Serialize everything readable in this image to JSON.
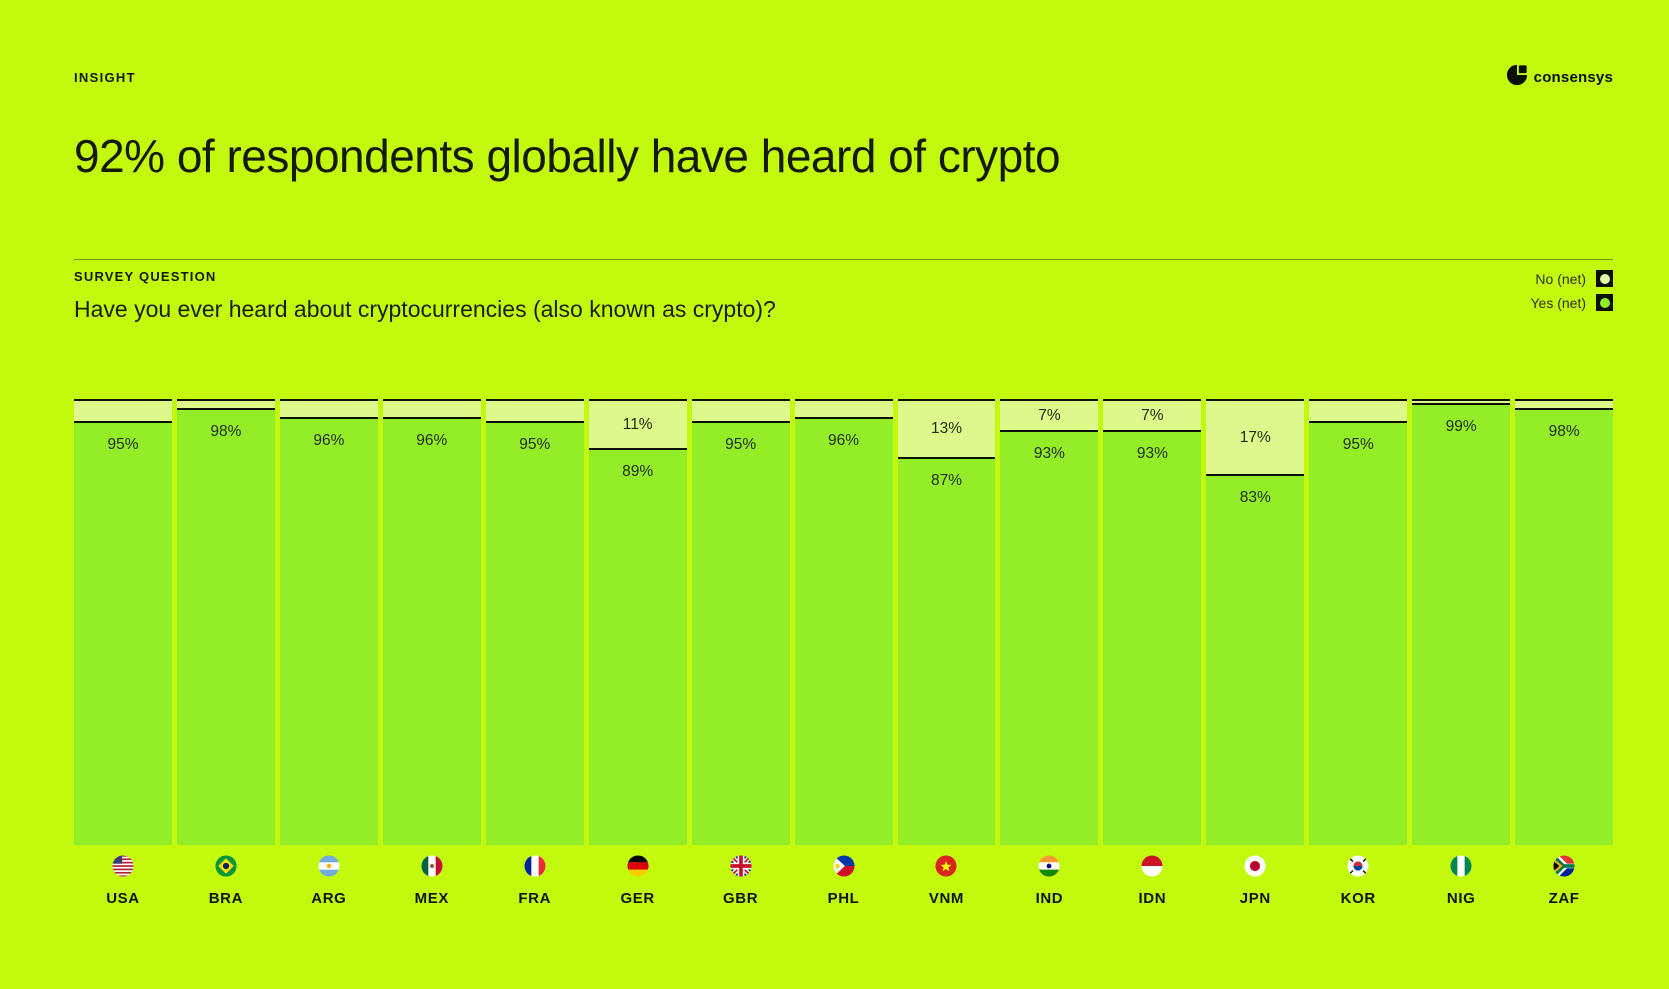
{
  "page": {
    "eyebrow": "INSIGHT",
    "title": "92% of respondents globally have heard of crypto",
    "brand": "consensys"
  },
  "survey": {
    "label": "SURVEY QUESTION",
    "question": "Have you ever heard about cryptocurrencies (also known as crypto)?"
  },
  "legend": {
    "no_label": "No (net)",
    "yes_label": "Yes (net)"
  },
  "colors": {
    "background": "#C2F90D",
    "yes": "#93EE28",
    "no": "#DDF98B",
    "line": "#0B1002"
  },
  "chart_data": {
    "type": "bar",
    "stacked": true,
    "orientation": "vertical",
    "unit": "%",
    "ylim": [
      0,
      100
    ],
    "grid": false,
    "legend_position": "top-right",
    "categories": [
      "USA",
      "BRA",
      "ARG",
      "MEX",
      "FRA",
      "GER",
      "GBR",
      "PHL",
      "VNM",
      "IND",
      "IDN",
      "JPN",
      "KOR",
      "NIG",
      "ZAF"
    ],
    "series": [
      {
        "name": "No (net)",
        "values": [
          5,
          2,
          4,
          4,
          5,
          11,
          5,
          4,
          13,
          7,
          7,
          17,
          5,
          1,
          2
        ]
      },
      {
        "name": "Yes (net)",
        "values": [
          95,
          98,
          96,
          96,
          95,
          89,
          95,
          96,
          87,
          93,
          93,
          83,
          95,
          99,
          98
        ]
      }
    ],
    "items": [
      {
        "code": "USA",
        "flag": "usa",
        "no": 5,
        "yes": 95,
        "no_label": null,
        "yes_label": "95%"
      },
      {
        "code": "BRA",
        "flag": "bra",
        "no": 2,
        "yes": 98,
        "no_label": null,
        "yes_label": "98%"
      },
      {
        "code": "ARG",
        "flag": "arg",
        "no": 4,
        "yes": 96,
        "no_label": null,
        "yes_label": "96%"
      },
      {
        "code": "MEX",
        "flag": "mex",
        "no": 4,
        "yes": 96,
        "no_label": null,
        "yes_label": "96%"
      },
      {
        "code": "FRA",
        "flag": "fra",
        "no": 5,
        "yes": 95,
        "no_label": null,
        "yes_label": "95%"
      },
      {
        "code": "GER",
        "flag": "ger",
        "no": 11,
        "yes": 89,
        "no_label": "11%",
        "yes_label": "89%"
      },
      {
        "code": "GBR",
        "flag": "gbr",
        "no": 5,
        "yes": 95,
        "no_label": null,
        "yes_label": "95%"
      },
      {
        "code": "PHL",
        "flag": "phl",
        "no": 4,
        "yes": 96,
        "no_label": null,
        "yes_label": "96%"
      },
      {
        "code": "VNM",
        "flag": "vnm",
        "no": 13,
        "yes": 87,
        "no_label": "13%",
        "yes_label": "87%"
      },
      {
        "code": "IND",
        "flag": "ind",
        "no": 7,
        "yes": 93,
        "no_label": "7%",
        "yes_label": "93%"
      },
      {
        "code": "IDN",
        "flag": "idn",
        "no": 7,
        "yes": 93,
        "no_label": "7%",
        "yes_label": "93%"
      },
      {
        "code": "JPN",
        "flag": "jpn",
        "no": 17,
        "yes": 83,
        "no_label": "17%",
        "yes_label": "83%"
      },
      {
        "code": "KOR",
        "flag": "kor",
        "no": 5,
        "yes": 95,
        "no_label": null,
        "yes_label": "95%"
      },
      {
        "code": "NIG",
        "flag": "nig",
        "no": 1,
        "yes": 99,
        "no_label": null,
        "yes_label": "99%"
      },
      {
        "code": "ZAF",
        "flag": "zaf",
        "no": 2,
        "yes": 98,
        "no_label": null,
        "yes_label": "98%"
      }
    ]
  }
}
